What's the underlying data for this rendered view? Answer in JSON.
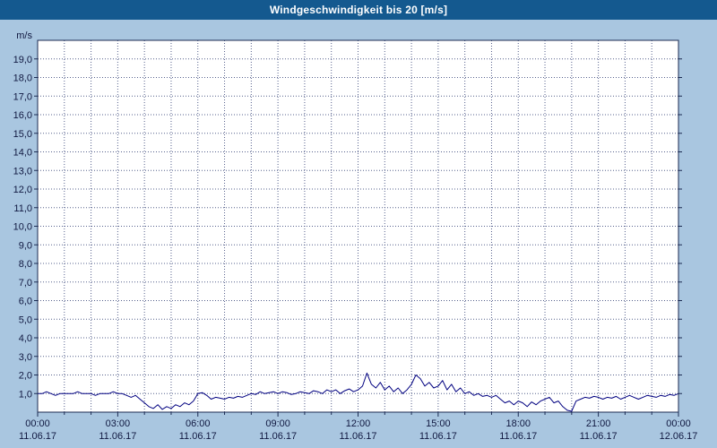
{
  "title": "Windgeschwindigkeit bis 20 [m/s]",
  "colors": {
    "page_bg": "#a9c6e0",
    "titlebar_bg": "#14598f",
    "titlebar_text": "#ffffff",
    "plot_bg": "#ffffff",
    "plot_border": "#1c2b52",
    "grid": "#55608c",
    "line": "#000080",
    "axis_text": "#101840"
  },
  "chart_data": {
    "type": "line",
    "title": "Windgeschwindigkeit bis 20 [m/s]",
    "ylabel_unit": "m/s",
    "ylim": [
      0,
      20
    ],
    "grid": "on",
    "legend": "none",
    "x_hours_total": 24,
    "x_gridline_every_hours": 1,
    "y_ticks": [
      {
        "value": 1,
        "label": "1,0"
      },
      {
        "value": 2,
        "label": "2,0"
      },
      {
        "value": 3,
        "label": "3,0"
      },
      {
        "value": 4,
        "label": "4,0"
      },
      {
        "value": 5,
        "label": "5,0"
      },
      {
        "value": 6,
        "label": "6,0"
      },
      {
        "value": 7,
        "label": "7,0"
      },
      {
        "value": 8,
        "label": "8,0"
      },
      {
        "value": 9,
        "label": "9,0"
      },
      {
        "value": 10,
        "label": "10,0"
      },
      {
        "value": 11,
        "label": "11,0"
      },
      {
        "value": 12,
        "label": "12,0"
      },
      {
        "value": 13,
        "label": "13,0"
      },
      {
        "value": 14,
        "label": "14,0"
      },
      {
        "value": 15,
        "label": "15,0"
      },
      {
        "value": 16,
        "label": "16,0"
      },
      {
        "value": 17,
        "label": "17,0"
      },
      {
        "value": 18,
        "label": "18,0"
      },
      {
        "value": 19,
        "label": "19,0"
      }
    ],
    "x_ticks": [
      {
        "hour": 0,
        "time": "00:00",
        "date": "11.06.17"
      },
      {
        "hour": 3,
        "time": "03:00",
        "date": "11.06.17"
      },
      {
        "hour": 6,
        "time": "06:00",
        "date": "11.06.17"
      },
      {
        "hour": 9,
        "time": "09:00",
        "date": "11.06.17"
      },
      {
        "hour": 12,
        "time": "12:00",
        "date": "11.06.17"
      },
      {
        "hour": 15,
        "time": "15:00",
        "date": "11.06.17"
      },
      {
        "hour": 18,
        "time": "18:00",
        "date": "11.06.17"
      },
      {
        "hour": 21,
        "time": "21:00",
        "date": "11.06.17"
      },
      {
        "hour": 24,
        "time": "00:00",
        "date": "12.06.17"
      }
    ],
    "series": [
      {
        "name": "Windgeschwindigkeit",
        "interval_minutes": 10,
        "values": [
          1.0,
          1.0,
          1.1,
          1.0,
          0.9,
          1.0,
          1.0,
          1.0,
          1.0,
          1.1,
          1.0,
          1.0,
          1.0,
          0.9,
          1.0,
          1.0,
          1.0,
          1.1,
          1.0,
          1.0,
          0.9,
          0.8,
          0.9,
          0.7,
          0.5,
          0.3,
          0.2,
          0.4,
          0.15,
          0.3,
          0.2,
          0.4,
          0.3,
          0.5,
          0.4,
          0.6,
          1.0,
          1.05,
          0.9,
          0.7,
          0.8,
          0.75,
          0.7,
          0.8,
          0.75,
          0.85,
          0.8,
          0.9,
          1.0,
          0.95,
          1.1,
          1.0,
          1.05,
          1.1,
          1.0,
          1.1,
          1.05,
          0.95,
          1.0,
          1.1,
          1.05,
          1.0,
          1.15,
          1.1,
          1.0,
          1.2,
          1.1,
          1.2,
          1.0,
          1.15,
          1.25,
          1.1,
          1.2,
          1.4,
          2.1,
          1.5,
          1.3,
          1.6,
          1.2,
          1.4,
          1.1,
          1.3,
          1.0,
          1.2,
          1.5,
          2.0,
          1.8,
          1.4,
          1.6,
          1.3,
          1.4,
          1.7,
          1.2,
          1.5,
          1.1,
          1.3,
          1.0,
          1.1,
          0.9,
          1.0,
          0.85,
          0.9,
          0.8,
          0.9,
          0.7,
          0.5,
          0.6,
          0.4,
          0.6,
          0.5,
          0.3,
          0.55,
          0.4,
          0.6,
          0.7,
          0.8,
          0.5,
          0.6,
          0.3,
          0.1,
          0.05,
          0.6,
          0.7,
          0.8,
          0.75,
          0.85,
          0.8,
          0.7,
          0.8,
          0.75,
          0.85,
          0.7,
          0.8,
          0.9,
          0.8,
          0.7,
          0.8,
          0.9,
          0.85,
          0.8,
          0.9,
          0.85,
          0.95,
          0.9,
          1.0
        ]
      }
    ]
  }
}
